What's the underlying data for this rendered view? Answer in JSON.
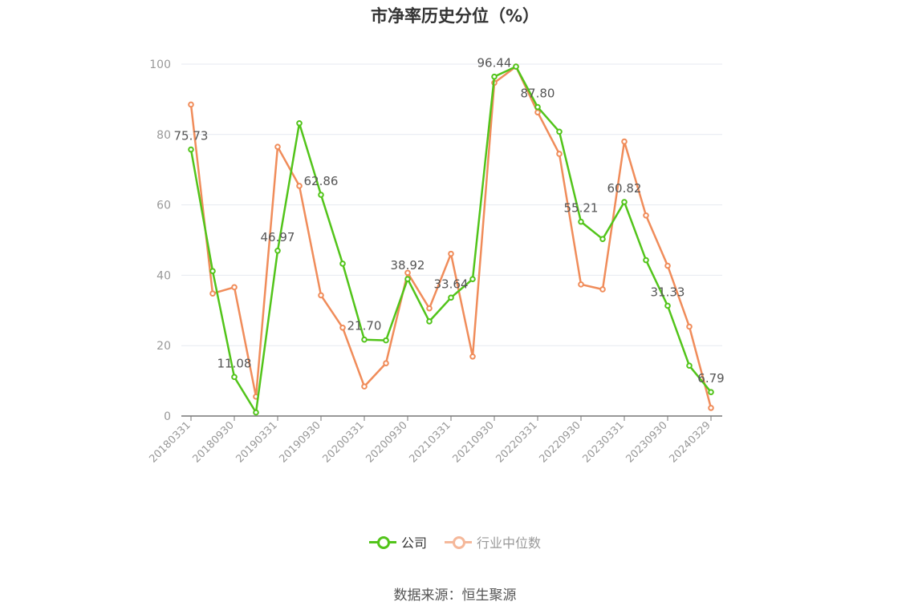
{
  "title": "市净率历史分位（%）",
  "source": "数据来源：恒生聚源",
  "colors": {
    "company": "#52c41a",
    "industry": "#f08c5a",
    "grid": "#e6e9f0",
    "axis": "#999999",
    "label": "#555555"
  },
  "legend": [
    {
      "name": "公司",
      "color": "#52c41a",
      "active": true
    },
    {
      "name": "行业中位数",
      "color": "#f5b89a",
      "active": false
    }
  ],
  "chart_data": {
    "type": "line",
    "title": "市净率历史分位（%）",
    "ylim": [
      0,
      100
    ],
    "yticks": [
      0,
      20,
      40,
      60,
      80,
      100
    ],
    "grid": true,
    "legend_position": "bottom-center",
    "x": [
      "20180331",
      "20180630",
      "20180930",
      "20181231",
      "20190331",
      "20190630",
      "20190930",
      "20191231",
      "20200331",
      "20200630",
      "20200930",
      "20201231",
      "20210331",
      "20210630",
      "20210930",
      "20211231",
      "20220331",
      "20220630",
      "20220930",
      "20221231",
      "20230331",
      "20230630",
      "20230930",
      "20231231",
      "20240329"
    ],
    "xtick_labels": [
      "20180331",
      "20180930",
      "20190331",
      "20190930",
      "20200331",
      "20200930",
      "20210331",
      "20210930",
      "20220331",
      "20220930",
      "20230331",
      "20230930",
      "20240329"
    ],
    "series": [
      {
        "name": "公司",
        "values": [
          75.73,
          41.2,
          11.08,
          1.0,
          46.97,
          83.2,
          62.86,
          43.3,
          21.7,
          21.5,
          38.92,
          26.9,
          33.64,
          38.9,
          96.44,
          99.3,
          87.8,
          80.8,
          55.21,
          50.3,
          60.82,
          44.3,
          31.33,
          14.3,
          6.79
        ]
      },
      {
        "name": "行业中位数",
        "values": [
          88.5,
          34.8,
          36.6,
          5.5,
          76.5,
          65.4,
          34.3,
          25.1,
          8.4,
          15.0,
          40.7,
          30.6,
          46.1,
          16.9,
          94.7,
          99.3,
          86.3,
          74.5,
          37.4,
          36.0,
          78.0,
          57.0,
          42.7,
          25.4,
          2.3
        ]
      }
    ],
    "data_labels": [
      {
        "index": 0,
        "text": "75.73"
      },
      {
        "index": 2,
        "text": "11.08"
      },
      {
        "index": 4,
        "text": "46.97"
      },
      {
        "index": 6,
        "text": "62.86"
      },
      {
        "index": 8,
        "text": "21.70"
      },
      {
        "index": 10,
        "text": "38.92"
      },
      {
        "index": 12,
        "text": "33.64"
      },
      {
        "index": 14,
        "text": "96.44"
      },
      {
        "index": 16,
        "text": "87.80"
      },
      {
        "index": 18,
        "text": "55.21"
      },
      {
        "index": 20,
        "text": "60.82"
      },
      {
        "index": 22,
        "text": "31.33"
      },
      {
        "index": 24,
        "text": "6.79"
      }
    ]
  }
}
